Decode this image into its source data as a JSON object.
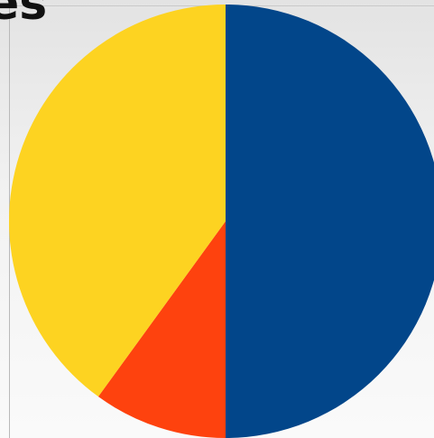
{
  "page": {
    "title_fragment": "es"
  },
  "chart_data": {
    "type": "pie",
    "title": "es",
    "slices": [
      {
        "value": 50,
        "color": "#02468a"
      },
      {
        "value": 10,
        "color": "#fe420e"
      },
      {
        "value": 40,
        "color": "#fdd321"
      }
    ]
  }
}
